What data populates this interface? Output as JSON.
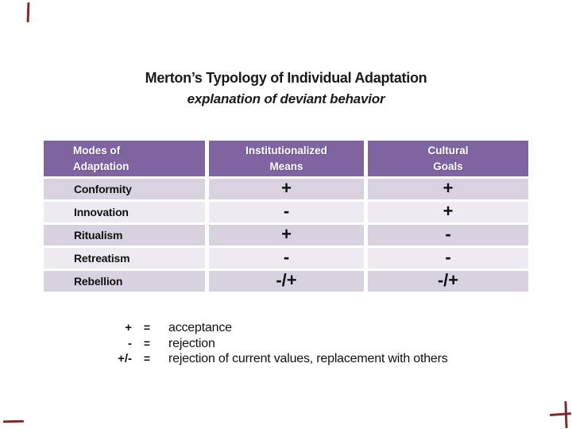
{
  "slide": {
    "background_color": "#ffffff",
    "frame_mark_color": "#7b2c2e"
  },
  "title": {
    "line1": "Merton’s Typology of Individual Adaptation",
    "line2": "explanation of deviant behavior",
    "text_color": "#1a1a1a"
  },
  "table": {
    "header_bg_color": "#8064a2",
    "header_text_color": "#ffffff",
    "band_dark_color": "#d8d2df",
    "band_light_color": "#edebf1",
    "headers": {
      "col1": "Modes of\nAdaptation",
      "col2": "Institutionalized\nMeans",
      "col3": "Cultural\nGoals"
    },
    "rows": [
      {
        "label": "Conformity",
        "means": "+",
        "goals": "+"
      },
      {
        "label": "Innovation",
        "means": "-",
        "goals": "+"
      },
      {
        "label": "Ritualism",
        "means": "+",
        "goals": "-"
      },
      {
        "label": "Retreatism",
        "means": "-",
        "goals": "-"
      },
      {
        "label": "Rebellion",
        "means": "-/+",
        "goals": "-/+"
      }
    ]
  },
  "legend": {
    "items": [
      {
        "symbol": "+",
        "equals": "=",
        "text": "acceptance"
      },
      {
        "symbol": "-",
        "equals": "=",
        "text": "rejection"
      },
      {
        "symbol": "+/-",
        "equals": "=",
        "text": "rejection of current values, replacement with others"
      }
    ]
  }
}
